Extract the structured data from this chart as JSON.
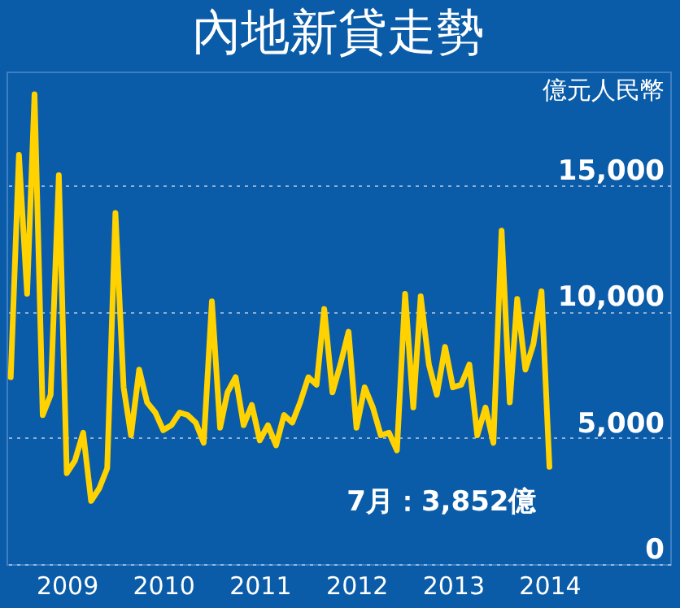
{
  "chart_data": {
    "type": "line",
    "title": "內地新貸走勢",
    "ylabel": "億元人民幣",
    "x": [
      "2008-12",
      "2009-01",
      "2009-02",
      "2009-03",
      "2009-04",
      "2009-05",
      "2009-06",
      "2009-07",
      "2009-08",
      "2009-09",
      "2009-10",
      "2009-11",
      "2009-12",
      "2010-01",
      "2010-02",
      "2010-03",
      "2010-04",
      "2010-05",
      "2010-06",
      "2010-07",
      "2010-08",
      "2010-09",
      "2010-10",
      "2010-11",
      "2010-12",
      "2011-01",
      "2011-02",
      "2011-03",
      "2011-04",
      "2011-05",
      "2011-06",
      "2011-07",
      "2011-08",
      "2011-09",
      "2011-10",
      "2011-11",
      "2011-12",
      "2012-01",
      "2012-02",
      "2012-03",
      "2012-04",
      "2012-05",
      "2012-06",
      "2012-07",
      "2012-08",
      "2012-09",
      "2012-10",
      "2012-11",
      "2012-12",
      "2013-01",
      "2013-02",
      "2013-03",
      "2013-04",
      "2013-05",
      "2013-06",
      "2013-07",
      "2013-08",
      "2013-09",
      "2013-10",
      "2013-11",
      "2013-12",
      "2014-01",
      "2014-02",
      "2014-03",
      "2014-04",
      "2014-05",
      "2014-06",
      "2014-07"
    ],
    "series": [
      {
        "color": "#ffd200",
        "values": [
          7400,
          16200,
          10700,
          18600,
          5900,
          6700,
          15400,
          3600,
          4100,
          5200,
          2500,
          3000,
          3800,
          13900,
          7000,
          5100,
          7700,
          6400,
          6000,
          5300,
          5500,
          6000,
          5900,
          5600,
          4800,
          10400,
          5400,
          6800,
          7400,
          5500,
          6300,
          4900,
          5500,
          4700,
          5900,
          5600,
          6400,
          7400,
          7100,
          10100,
          6800,
          7900,
          9200,
          5400,
          7000,
          6200,
          5100,
          5200,
          4500,
          10700,
          6200,
          10600,
          7900,
          6700,
          8600,
          7000,
          7100,
          7900,
          5100,
          6200,
          4800,
          13200,
          6400,
          10500,
          7700,
          8700,
          10800,
          3852
        ]
      }
    ],
    "xlim": [
      "2008-11-15",
      "2015-10-01"
    ],
    "ylim": [
      0,
      19500
    ],
    "yticks": [
      0,
      {
        "value": 5000,
        "label": "5,000"
      },
      {
        "value": 10000,
        "label": "10,000"
      },
      {
        "value": 15000,
        "label": "15,000"
      }
    ],
    "xticks": [
      {
        "value": "2009-07",
        "label": "2009"
      },
      {
        "value": "2010-07",
        "label": "2010"
      },
      {
        "value": "2011-07",
        "label": "2011"
      },
      {
        "value": "2012-07",
        "label": "2012"
      },
      {
        "value": "2013-07",
        "label": "2013"
      },
      {
        "value": "2014-07",
        "label": "2014"
      }
    ],
    "grid": "y",
    "legend": false,
    "marker": "none",
    "line_style": "solid",
    "annotations": [
      {
        "text": "7月：3,852億",
        "x": "2014-07",
        "y": 3852
      }
    ]
  }
}
